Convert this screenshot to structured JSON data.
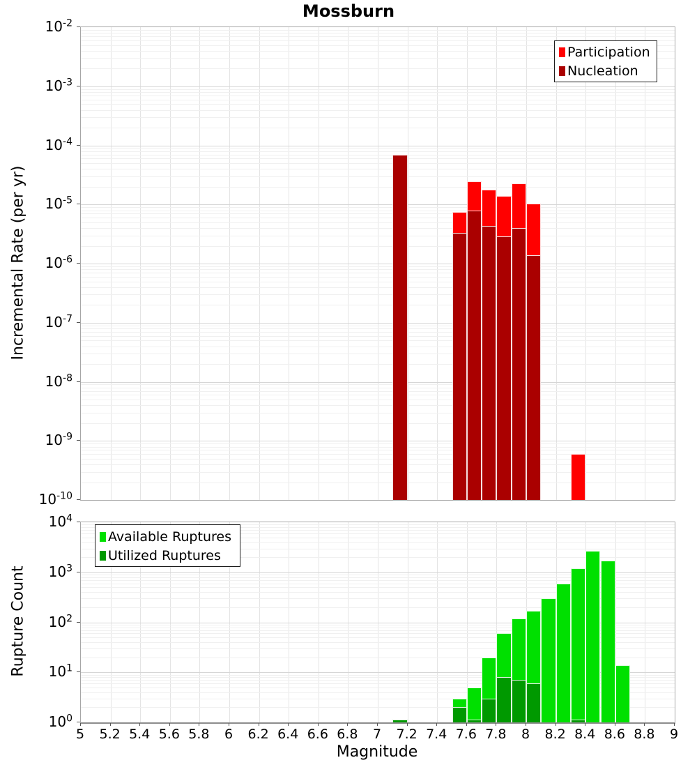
{
  "title": "Mossburn",
  "x_axis": {
    "label": "Magnitude",
    "min": 5,
    "max": 9,
    "tick_step": 0.2,
    "tick_labels": [
      "5",
      "5.2",
      "5.4",
      "5.6",
      "5.8",
      "6",
      "6.2",
      "6.4",
      "6.6",
      "6.8",
      "7",
      "7.2",
      "7.4",
      "7.6",
      "7.8",
      "8",
      "8.2",
      "8.4",
      "8.6",
      "8.8",
      "9"
    ]
  },
  "chart_data": [
    {
      "type": "bar",
      "title": "Mossburn",
      "xlabel": "Magnitude",
      "ylabel": "Incremental Rate (per yr)",
      "y_scale": "log",
      "ylim": [
        1e-10,
        0.01
      ],
      "y_tick_base": "10",
      "y_tick_exponents": [
        -2,
        -3,
        -4,
        -5,
        -6,
        -7,
        -8,
        -9,
        -10
      ],
      "grid": true,
      "bin_width": 0.1,
      "legend_position": "top-right",
      "legend": [
        {
          "label": "Participation",
          "color": "#ff0000"
        },
        {
          "label": "Nucleation",
          "color": "#aa0000"
        }
      ],
      "series": [
        {
          "name": "Participation",
          "color": "#ff0000",
          "bars": [
            [
              7.1,
              7e-05
            ],
            [
              7.5,
              7.5e-06
            ],
            [
              7.6,
              2.5e-05
            ],
            [
              7.7,
              1.8e-05
            ],
            [
              7.8,
              1.4e-05
            ],
            [
              7.9,
              2.3e-05
            ],
            [
              8,
              1.05e-05
            ],
            [
              8.3,
              6e-10
            ]
          ]
        },
        {
          "name": "Nucleation",
          "color": "#aa0000",
          "bars": [
            [
              7.1,
              7e-05
            ],
            [
              7.5,
              3.3e-06
            ],
            [
              7.6,
              8e-06
            ],
            [
              7.7,
              4.4e-06
            ],
            [
              7.8,
              2.9e-06
            ],
            [
              7.9,
              4e-06
            ],
            [
              8,
              1.4e-06
            ]
          ]
        }
      ]
    },
    {
      "type": "bar",
      "title": "",
      "xlabel": "Magnitude",
      "ylabel": "Rupture Count",
      "y_scale": "log",
      "ylim": [
        1,
        10000
      ],
      "y_tick_base": "10",
      "y_tick_exponents": [
        4,
        3,
        2,
        1,
        0
      ],
      "grid": true,
      "bin_width": 0.1,
      "legend_position": "top-left",
      "legend": [
        {
          "label": "Available Ruptures",
          "color": "#00e000"
        },
        {
          "label": "Utilized Ruptures",
          "color": "#009900"
        }
      ],
      "series": [
        {
          "name": "Available Ruptures",
          "color": "#00e000",
          "bars": [
            [
              7.1,
              1
            ],
            [
              7.5,
              3
            ],
            [
              7.6,
              5
            ],
            [
              7.7,
              20
            ],
            [
              7.8,
              60
            ],
            [
              7.9,
              120
            ],
            [
              8,
              170
            ],
            [
              8.1,
              300
            ],
            [
              8.2,
              600
            ],
            [
              8.3,
              1200
            ],
            [
              8.4,
              2700
            ],
            [
              8.5,
              1700
            ],
            [
              8.6,
              14
            ]
          ]
        },
        {
          "name": "Utilized Ruptures",
          "color": "#009900",
          "bars": [
            [
              7.1,
              1
            ],
            [
              7.5,
              2
            ],
            [
              7.6,
              1
            ],
            [
              7.7,
              3
            ],
            [
              7.8,
              8
            ],
            [
              7.9,
              7
            ],
            [
              8,
              6
            ],
            [
              8.3,
              1
            ]
          ]
        }
      ]
    }
  ]
}
